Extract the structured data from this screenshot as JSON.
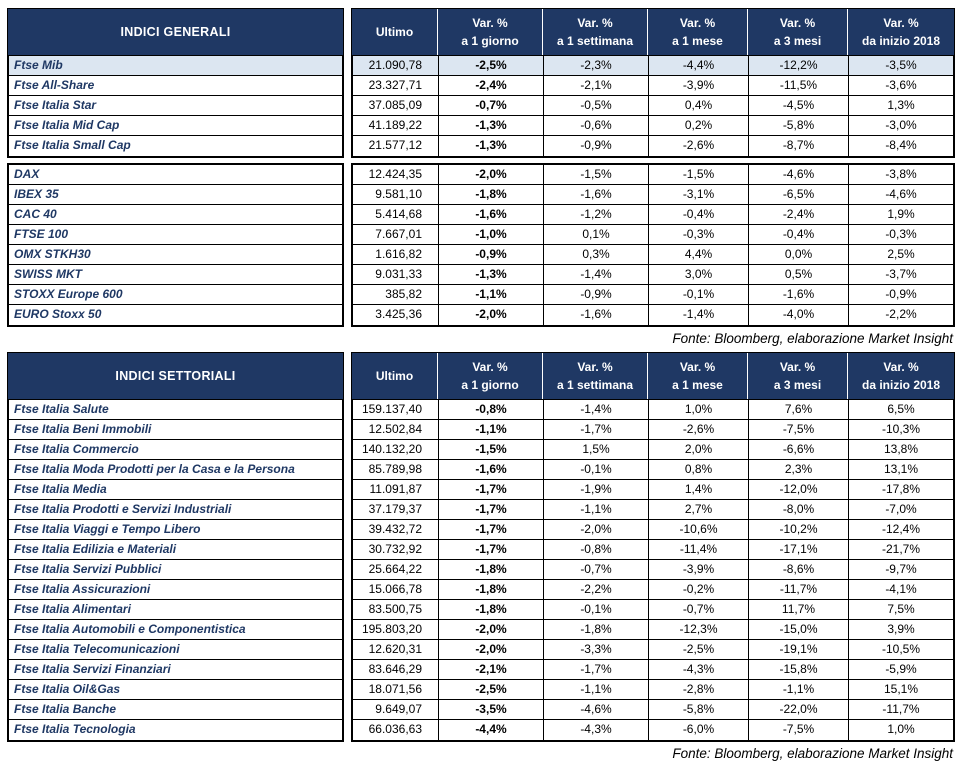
{
  "source_note": "Fonte: Bloomberg, elaborazione Market Insight",
  "columns": {
    "ultimo": "Ultimo",
    "var_label": "Var. %",
    "periods": [
      "a 1 giorno",
      "a 1 settimana",
      "a 1 mese",
      "a 3 mesi",
      "da inizio 2018"
    ]
  },
  "tables": [
    {
      "title": "INDICI GENERALI",
      "row_groups": [
        {
          "rows": [
            {
              "name": "Ftse Mib",
              "ultimo": "21.090,78",
              "vars": [
                "-2,5%",
                "-2,3%",
                "-4,4%",
                "-12,2%",
                "-3,5%"
              ],
              "highlight": true
            },
            {
              "name": "Ftse All-Share",
              "ultimo": "23.327,71",
              "vars": [
                "-2,4%",
                "-2,1%",
                "-3,9%",
                "-11,5%",
                "-3,6%"
              ]
            },
            {
              "name": "Ftse Italia Star",
              "ultimo": "37.085,09",
              "vars": [
                "-0,7%",
                "-0,5%",
                "0,4%",
                "-4,5%",
                "1,3%"
              ]
            },
            {
              "name": "Ftse Italia Mid Cap",
              "ultimo": "41.189,22",
              "vars": [
                "-1,3%",
                "-0,6%",
                "0,2%",
                "-5,8%",
                "-3,0%"
              ]
            },
            {
              "name": "Ftse Italia Small Cap",
              "ultimo": "21.577,12",
              "vars": [
                "-1,3%",
                "-0,9%",
                "-2,6%",
                "-8,7%",
                "-8,4%"
              ]
            }
          ]
        },
        {
          "rows": [
            {
              "name": "DAX",
              "ultimo": "12.424,35",
              "vars": [
                "-2,0%",
                "-1,5%",
                "-1,5%",
                "-4,6%",
                "-3,8%"
              ]
            },
            {
              "name": "IBEX 35",
              "ultimo": "9.581,10",
              "vars": [
                "-1,8%",
                "-1,6%",
                "-3,1%",
                "-6,5%",
                "-4,6%"
              ]
            },
            {
              "name": "CAC 40",
              "ultimo": "5.414,68",
              "vars": [
                "-1,6%",
                "-1,2%",
                "-0,4%",
                "-2,4%",
                "1,9%"
              ]
            },
            {
              "name": "FTSE 100",
              "ultimo": "7.667,01",
              "vars": [
                "-1,0%",
                "0,1%",
                "-0,3%",
                "-0,4%",
                "-0,3%"
              ]
            },
            {
              "name": "OMX STKH30",
              "ultimo": "1.616,82",
              "vars": [
                "-0,9%",
                "0,3%",
                "4,4%",
                "0,0%",
                "2,5%"
              ]
            },
            {
              "name": "SWISS MKT",
              "ultimo": "9.031,33",
              "vars": [
                "-1,3%",
                "-1,4%",
                "3,0%",
                "0,5%",
                "-3,7%"
              ]
            },
            {
              "name": "STOXX Europe 600",
              "ultimo": "385,82",
              "vars": [
                "-1,1%",
                "-0,9%",
                "-0,1%",
                "-1,6%",
                "-0,9%"
              ]
            },
            {
              "name": "EURO Stoxx 50",
              "ultimo": "3.425,36",
              "vars": [
                "-2,0%",
                "-1,6%",
                "-1,4%",
                "-4,0%",
                "-2,2%"
              ]
            }
          ]
        }
      ]
    },
    {
      "title": "INDICI SETTORIALI",
      "row_groups": [
        {
          "rows": [
            {
              "name": "Ftse Italia Salute",
              "ultimo": "159.137,40",
              "vars": [
                "-0,8%",
                "-1,4%",
                "1,0%",
                "7,6%",
                "6,5%"
              ]
            },
            {
              "name": "Ftse Italia Beni Immobili",
              "ultimo": "12.502,84",
              "vars": [
                "-1,1%",
                "-1,7%",
                "-2,6%",
                "-7,5%",
                "-10,3%"
              ]
            },
            {
              "name": "Ftse Italia Commercio",
              "ultimo": "140.132,20",
              "vars": [
                "-1,5%",
                "1,5%",
                "2,0%",
                "-6,6%",
                "13,8%"
              ]
            },
            {
              "name": "Ftse Italia Moda Prodotti per la Casa e la Persona",
              "ultimo": "85.789,98",
              "vars": [
                "-1,6%",
                "-0,1%",
                "0,8%",
                "2,3%",
                "13,1%"
              ]
            },
            {
              "name": "Ftse Italia Media",
              "ultimo": "11.091,87",
              "vars": [
                "-1,7%",
                "-1,9%",
                "1,4%",
                "-12,0%",
                "-17,8%"
              ]
            },
            {
              "name": "Ftse Italia Prodotti e Servizi Industriali",
              "ultimo": "37.179,37",
              "vars": [
                "-1,7%",
                "-1,1%",
                "2,7%",
                "-8,0%",
                "-7,0%"
              ]
            },
            {
              "name": "Ftse Italia Viaggi e Tempo Libero",
              "ultimo": "39.432,72",
              "vars": [
                "-1,7%",
                "-2,0%",
                "-10,6%",
                "-10,2%",
                "-12,4%"
              ]
            },
            {
              "name": "Ftse Italia Edilizia e Materiali",
              "ultimo": "30.732,92",
              "vars": [
                "-1,7%",
                "-0,8%",
                "-11,4%",
                "-17,1%",
                "-21,7%"
              ]
            },
            {
              "name": "Ftse Italia Servizi Pubblici",
              "ultimo": "25.664,22",
              "vars": [
                "-1,8%",
                "-0,7%",
                "-3,9%",
                "-8,6%",
                "-9,7%"
              ]
            },
            {
              "name": "Ftse Italia Assicurazioni",
              "ultimo": "15.066,78",
              "vars": [
                "-1,8%",
                "-2,2%",
                "-0,2%",
                "-11,7%",
                "-4,1%"
              ]
            },
            {
              "name": "Ftse Italia Alimentari",
              "ultimo": "83.500,75",
              "vars": [
                "-1,8%",
                "-0,1%",
                "-0,7%",
                "11,7%",
                "7,5%"
              ]
            },
            {
              "name": "Ftse Italia Automobili e Componentistica",
              "ultimo": "195.803,20",
              "vars": [
                "-2,0%",
                "-1,8%",
                "-12,3%",
                "-15,0%",
                "3,9%"
              ]
            },
            {
              "name": "Ftse Italia Telecomunicazioni",
              "ultimo": "12.620,31",
              "vars": [
                "-2,0%",
                "-3,3%",
                "-2,5%",
                "-19,1%",
                "-10,5%"
              ]
            },
            {
              "name": "Ftse Italia Servizi Finanziari",
              "ultimo": "83.646,29",
              "vars": [
                "-2,1%",
                "-1,7%",
                "-4,3%",
                "-15,8%",
                "-5,9%"
              ]
            },
            {
              "name": "Ftse Italia Oil&Gas",
              "ultimo": "18.071,56",
              "vars": [
                "-2,5%",
                "-1,1%",
                "-2,8%",
                "-1,1%",
                "15,1%"
              ]
            },
            {
              "name": "Ftse Italia Banche",
              "ultimo": "9.649,07",
              "vars": [
                "-3,5%",
                "-4,6%",
                "-5,8%",
                "-22,0%",
                "-11,7%"
              ]
            },
            {
              "name": "Ftse Italia Tecnologia",
              "ultimo": "66.036,63",
              "vars": [
                "-4,4%",
                "-4,3%",
                "-6,0%",
                "-7,5%",
                "1,0%"
              ]
            }
          ]
        }
      ]
    }
  ]
}
